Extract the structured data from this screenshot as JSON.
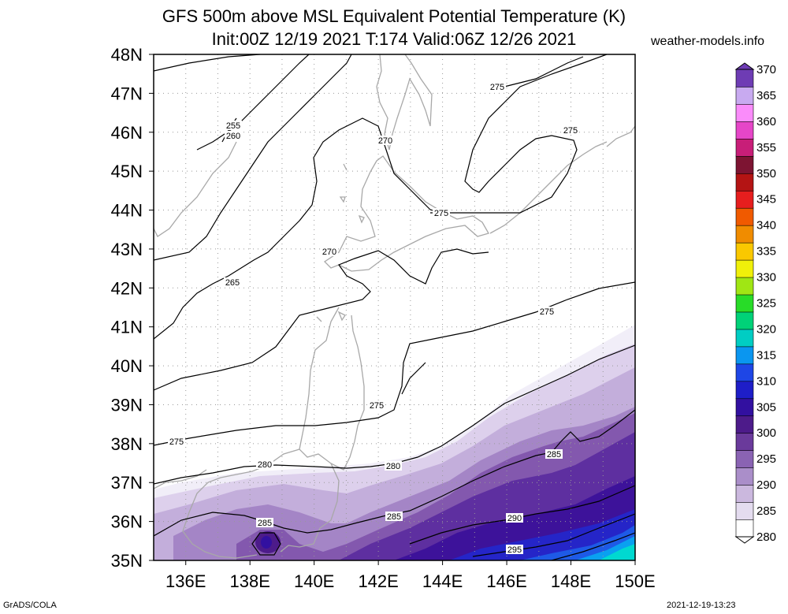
{
  "title_line1": "GFS 500m above MSL Equivalent Potential Temperature (K)",
  "title_line2": "Init:00Z 12/19 2021 T:174 Valid:06Z 12/26 2021",
  "credit": "weather-models.info",
  "footer_left": "GrADS/COLA",
  "footer_right": "2021-12-19-13:23",
  "map": {
    "lat_labels": [
      "48N",
      "47N",
      "46N",
      "45N",
      "44N",
      "43N",
      "42N",
      "41N",
      "40N",
      "39N",
      "38N",
      "37N",
      "36N",
      "35N"
    ],
    "lon_labels": [
      "136E",
      "138E",
      "140E",
      "142E",
      "144E",
      "146E",
      "148E",
      "150E"
    ],
    "lat_range": [
      35,
      48
    ],
    "lon_range": [
      135,
      150
    ]
  },
  "colorbar": {
    "values": [
      280,
      285,
      290,
      295,
      300,
      305,
      310,
      315,
      320,
      325,
      330,
      335,
      340,
      345,
      350,
      355,
      360,
      365,
      370
    ],
    "colors": [
      "#ffffff",
      "#e4dcef",
      "#cbb8de",
      "#aa8ec9",
      "#8a63b3",
      "#6a3a9b",
      "#4d1b8a",
      "#3210a0",
      "#1e1ec8",
      "#1e46e6",
      "#0a96f0",
      "#00cdc3",
      "#00d278",
      "#28dc28",
      "#a0e614",
      "#f0f00a",
      "#fac800",
      "#f08c00",
      "#f05a00",
      "#e61e1e",
      "#b41414",
      "#7d1432",
      "#c81e78",
      "#e646c8",
      "#fa8cfa",
      "#c8aaf0",
      "#6e3cb4"
    ]
  },
  "contour_labels": [
    {
      "text": "255"
    },
    {
      "text": "260"
    },
    {
      "text": "265"
    },
    {
      "text": "270"
    },
    {
      "text": "270"
    },
    {
      "text": "275"
    },
    {
      "text": "275"
    },
    {
      "text": "275"
    },
    {
      "text": "275"
    },
    {
      "text": "275"
    },
    {
      "text": "275"
    },
    {
      "text": "280"
    },
    {
      "text": "280"
    },
    {
      "text": "285"
    },
    {
      "text": "285"
    },
    {
      "text": "285"
    },
    {
      "text": "290"
    },
    {
      "text": "295"
    }
  ]
}
